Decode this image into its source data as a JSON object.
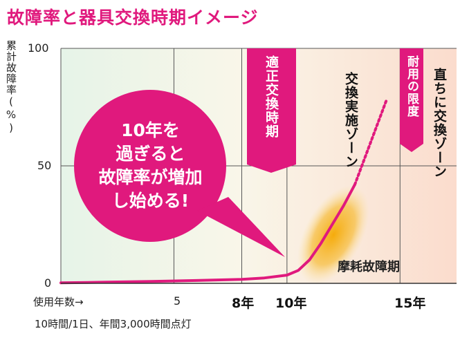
{
  "title": "故障率と器具交換時期イメージ",
  "colors": {
    "accent": "#e0197d",
    "plot_bg_start": "#e6f4e8",
    "plot_bg_end": "#fbdccd",
    "grid": "#555555",
    "wear_blob": "#f5b21b"
  },
  "chart_data": {
    "type": "line",
    "ylabel": "累計故障率(%)",
    "xlabel": "使用年数→",
    "yticks": [
      "100",
      "50",
      "0"
    ],
    "xticks_plain": [
      "5"
    ],
    "xticks_bold": [
      "8年",
      "10年",
      "15年"
    ],
    "ylim": [
      0,
      100
    ],
    "xlim": [
      0,
      17.5
    ],
    "grid": true,
    "series": [
      {
        "x": [
          0,
          2,
          4,
          6,
          8,
          9,
          10,
          10.5,
          11,
          11.5,
          12,
          12.5,
          13
        ],
        "y": [
          0.2,
          0.5,
          0.8,
          1.2,
          1.7,
          2.3,
          3.5,
          5.5,
          10,
          17,
          25,
          33,
          42
        ],
        "style": "solid"
      },
      {
        "x": [
          13,
          13.7,
          14.4
        ],
        "y": [
          42,
          60,
          78
        ],
        "style": "dotted"
      }
    ]
  },
  "bubble": {
    "lines": [
      "10年を",
      "過ぎると",
      "故障率が増加",
      "し始める!"
    ]
  },
  "ribbons": {
    "appropriate": "適正交換時期",
    "limit": "耐用の限度"
  },
  "zones": {
    "implement": "交換実施ゾーン",
    "immediate": "直ちに交換ゾーン"
  },
  "wear_label": "摩耗故障期",
  "footnote": "10時間/1日、年間3,000時間点灯"
}
